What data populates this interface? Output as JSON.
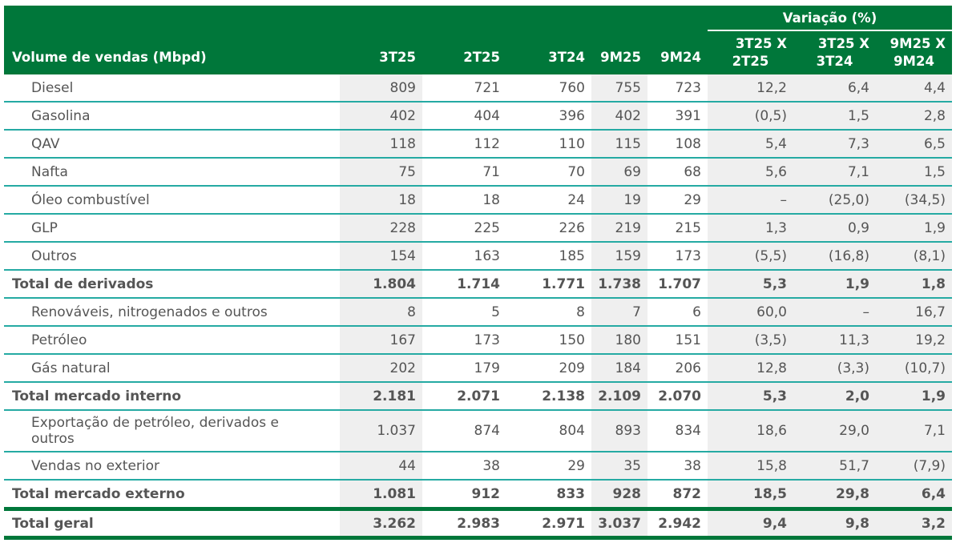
{
  "header": {
    "label": "Volume de vendas (Mbpd)",
    "cols": [
      "3T25",
      "2T25",
      "3T24",
      "9M25",
      "9M24"
    ],
    "group": "Variação (%)",
    "var_cols": [
      [
        "3T25 X",
        "2T25"
      ],
      [
        "3T25 X",
        "3T24"
      ],
      [
        "9M25 X",
        "9M24"
      ]
    ]
  },
  "rows": [
    {
      "label": "Diesel",
      "type": "item",
      "values": [
        "809",
        "721",
        "760",
        "755",
        "723",
        "12,2",
        "6,4",
        "4,4"
      ]
    },
    {
      "label": "Gasolina",
      "type": "item",
      "values": [
        "402",
        "404",
        "396",
        "402",
        "391",
        "(0,5)",
        "1,5",
        "2,8"
      ]
    },
    {
      "label": "QAV",
      "type": "item",
      "values": [
        "118",
        "112",
        "110",
        "115",
        "108",
        "5,4",
        "7,3",
        "6,5"
      ]
    },
    {
      "label": "Nafta",
      "type": "item",
      "values": [
        "75",
        "71",
        "70",
        "69",
        "68",
        "5,6",
        "7,1",
        "1,5"
      ]
    },
    {
      "label": "Óleo combustível",
      "type": "item",
      "values": [
        "18",
        "18",
        "24",
        "19",
        "29",
        "–",
        "(25,0)",
        "(34,5)"
      ]
    },
    {
      "label": "GLP",
      "type": "item",
      "values": [
        "228",
        "225",
        "226",
        "219",
        "215",
        "1,3",
        "0,9",
        "1,9"
      ]
    },
    {
      "label": "Outros",
      "type": "item",
      "values": [
        "154",
        "163",
        "185",
        "159",
        "173",
        "(5,5)",
        "(16,8)",
        "(8,1)"
      ]
    },
    {
      "label": "Total de derivados",
      "type": "total",
      "values": [
        "1.804",
        "1.714",
        "1.771",
        "1.738",
        "1.707",
        "5,3",
        "1,9",
        "1,8"
      ]
    },
    {
      "label": "Renováveis, nitrogenados e outros",
      "type": "item",
      "values": [
        "8",
        "5",
        "8",
        "7",
        "6",
        "60,0",
        "–",
        "16,7"
      ]
    },
    {
      "label": "Petróleo",
      "type": "item",
      "values": [
        "167",
        "173",
        "150",
        "180",
        "151",
        "(3,5)",
        "11,3",
        "19,2"
      ]
    },
    {
      "label": "Gás natural",
      "type": "item",
      "values": [
        "202",
        "179",
        "209",
        "184",
        "206",
        "12,8",
        "(3,3)",
        "(10,7)"
      ]
    },
    {
      "label": "Total mercado interno",
      "type": "total",
      "values": [
        "2.181",
        "2.071",
        "2.138",
        "2.109",
        "2.070",
        "5,3",
        "2,0",
        "1,9"
      ]
    },
    {
      "label": "Exportação de petróleo, derivados e outros",
      "type": "tall",
      "values": [
        "1.037",
        "874",
        "804",
        "893",
        "834",
        "18,6",
        "29,0",
        "7,1"
      ]
    },
    {
      "label": "Vendas no exterior",
      "type": "item",
      "values": [
        "44",
        "38",
        "29",
        "35",
        "38",
        "15,8",
        "51,7",
        "(7,9)"
      ]
    },
    {
      "label": "Total mercado externo",
      "type": "total pre-geral",
      "values": [
        "1.081",
        "912",
        "833",
        "928",
        "872",
        "18,5",
        "29,8",
        "6,4"
      ]
    },
    {
      "label": "Total geral",
      "type": "geral",
      "values": [
        "3.262",
        "2.983",
        "2.971",
        "3.037",
        "2.942",
        "9,4",
        "9,8",
        "3,2"
      ]
    }
  ],
  "colors": {
    "header_bg": "#00773a",
    "row_line": "#25aaa3",
    "shade": "#efefef"
  }
}
